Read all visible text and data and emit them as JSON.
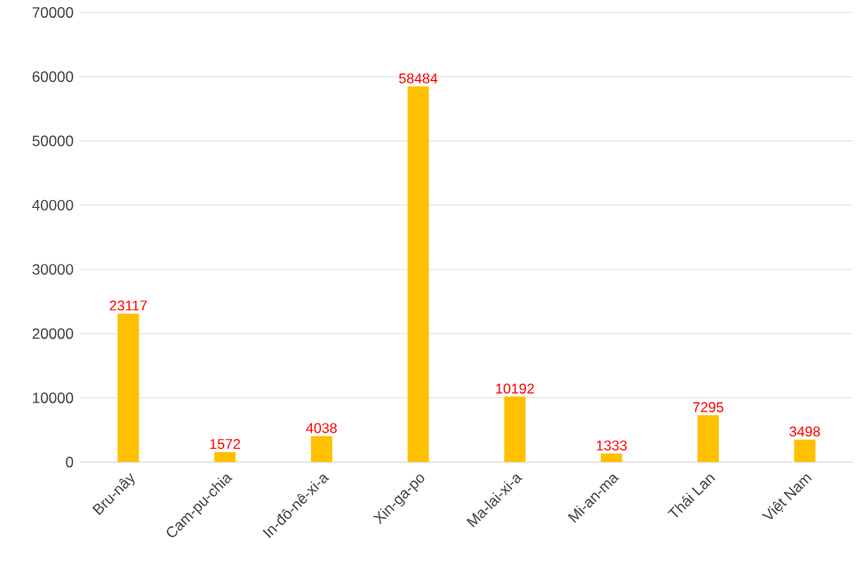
{
  "chart_data": {
    "type": "bar",
    "categories": [
      "Bru-nây",
      "Cam-pu-chia",
      "In-đô-nê-xi-a",
      "Xin-ga-po",
      "Ma-lai-xi-a",
      "Mi-an-ma",
      "Thái Lan",
      "Việt Nam"
    ],
    "values": [
      23117,
      1572,
      4038,
      58484,
      10192,
      1333,
      7295,
      3498
    ],
    "color": "#ffc000",
    "data_labels": true,
    "ylim": [
      0,
      70000
    ],
    "yticks": [
      0,
      10000,
      20000,
      30000,
      40000,
      50000,
      60000,
      70000
    ],
    "grid": "y"
  }
}
